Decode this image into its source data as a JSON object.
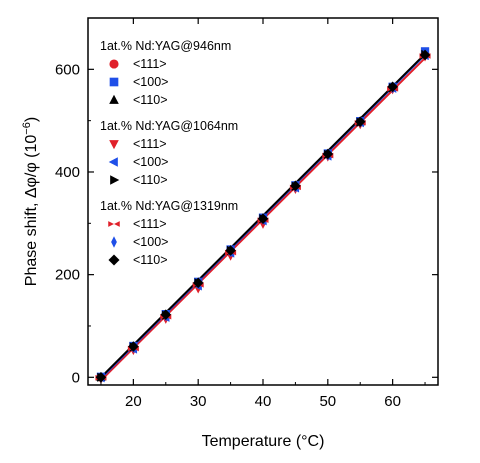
{
  "chart_data": {
    "type": "scatter",
    "xlabel": "Temperature (°C)",
    "ylabel": "Phase shift, Δφ/φ (10",
    "ylabel_exponent": "−6",
    "ylabel_close": ")",
    "xlim": [
      13,
      67
    ],
    "ylim": [
      -15,
      700
    ],
    "xticks": [
      20,
      30,
      40,
      50,
      60
    ],
    "yticks": [
      0,
      200,
      400,
      600
    ],
    "x": [
      15,
      20,
      25,
      30,
      35,
      40,
      45,
      50,
      55,
      60,
      65
    ],
    "legend_groups": [
      {
        "title": "1at.% Nd:YAG@946nm",
        "series": [
          {
            "name": "<111>",
            "marker": "circle",
            "color": "#e0202a",
            "values": [
              0,
              60,
              122,
              185,
              248,
              310,
              373,
              435,
              498,
              565,
              628
            ]
          },
          {
            "name": "<100>",
            "marker": "square",
            "color": "#1f4fe8",
            "values": [
              1,
              61,
              123,
              186,
              249,
              311,
              374,
              436,
              499,
              566,
              635
            ]
          },
          {
            "name": "<110>",
            "marker": "triangle-up",
            "color": "#000000",
            "values": [
              0,
              60,
              122,
              185,
              248,
              310,
              373,
              435,
              498,
              565,
              630
            ]
          }
        ]
      },
      {
        "title": "1at.% Nd:YAG@1064nm",
        "series": [
          {
            "name": "<111>",
            "marker": "triangle-down",
            "color": "#e0202a",
            "values": [
              -3,
              53,
              114,
              173,
              237,
              299,
              367,
              430,
              493,
              561,
              625
            ]
          },
          {
            "name": "<100>",
            "marker": "triangle-left",
            "color": "#1f4fe8",
            "values": [
              -1,
              55,
              117,
              178,
              242,
              305,
              369,
              431,
              496,
              563,
              627
            ]
          },
          {
            "name": "<110>",
            "marker": "triangle-right",
            "color": "#000000",
            "values": [
              0,
              59,
              121,
              184,
              247,
              309,
              372,
              434,
              497,
              564,
              629
            ]
          }
        ]
      },
      {
        "title": "1at.% Nd:YAG@1319nm",
        "series": [
          {
            "name": "<111>",
            "marker": "bowtie",
            "color": "#e0202a",
            "values": [
              -1,
              56,
              118,
              180,
              243,
              306,
              370,
              432,
              496,
              562,
              626
            ]
          },
          {
            "name": "<100>",
            "marker": "diamond-thin",
            "color": "#1f4fe8",
            "values": [
              0,
              58,
              120,
              182,
              245,
              308,
              371,
              433,
              497,
              564,
              632
            ]
          },
          {
            "name": "<110>",
            "marker": "diamond",
            "color": "#000000",
            "values": [
              0,
              60,
              122,
              184,
              247,
              309,
              373,
              435,
              498,
              566,
              628
            ]
          }
        ]
      }
    ],
    "fit_lines": [
      {
        "color": "#e0202a",
        "from": [
          15,
          -6
        ],
        "to": [
          65,
          622
        ]
      },
      {
        "color": "#1f4fe8",
        "from": [
          15,
          -2
        ],
        "to": [
          65,
          628
        ]
      },
      {
        "color": "#000000",
        "from": [
          15,
          0
        ],
        "to": [
          65,
          630
        ]
      }
    ],
    "grid": false,
    "legend_position": "top-left"
  }
}
